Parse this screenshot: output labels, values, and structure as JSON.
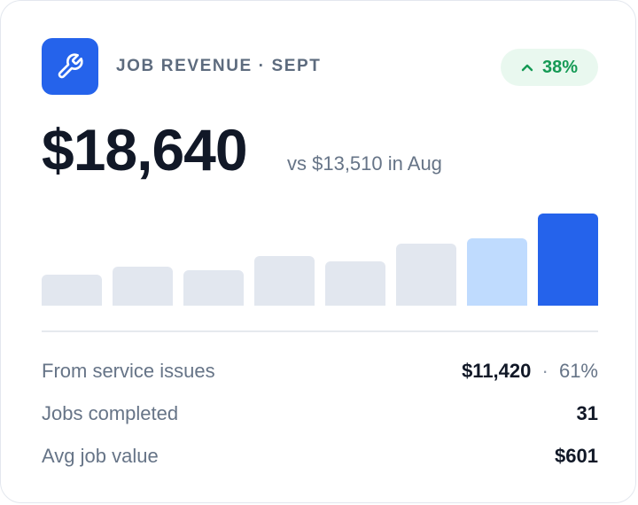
{
  "header": {
    "eyebrow": "JOB REVENUE · SEPT",
    "icon": "wrench-icon",
    "delta": {
      "arrow": "^",
      "value": "38%",
      "direction": "up"
    }
  },
  "summary": {
    "value": "$18,640",
    "comparison": "vs $13,510 in Aug"
  },
  "chart_data": {
    "type": "bar",
    "title": "",
    "xlabel": "",
    "ylabel": "",
    "grid": false,
    "values": [
      35,
      44,
      40,
      56,
      50,
      70,
      76,
      104
    ],
    "colors": [
      "#e2e7ef",
      "#e2e7ef",
      "#e2e7ef",
      "#e2e7ef",
      "#e2e7ef",
      "#e2e7ef",
      "#bfdbfe",
      "#2563eb"
    ]
  },
  "stats": [
    {
      "label": "From service issues",
      "value": "$11,420",
      "separator": "·",
      "extra": "61%"
    },
    {
      "label": "Jobs completed",
      "value": "31"
    },
    {
      "label": "Avg job value",
      "value": "$601"
    }
  ],
  "colors": {
    "accent": "#2563eb",
    "accent_light": "#bfdbfe",
    "positive": "#159a55",
    "positive_bg": "#e9f8ef"
  }
}
